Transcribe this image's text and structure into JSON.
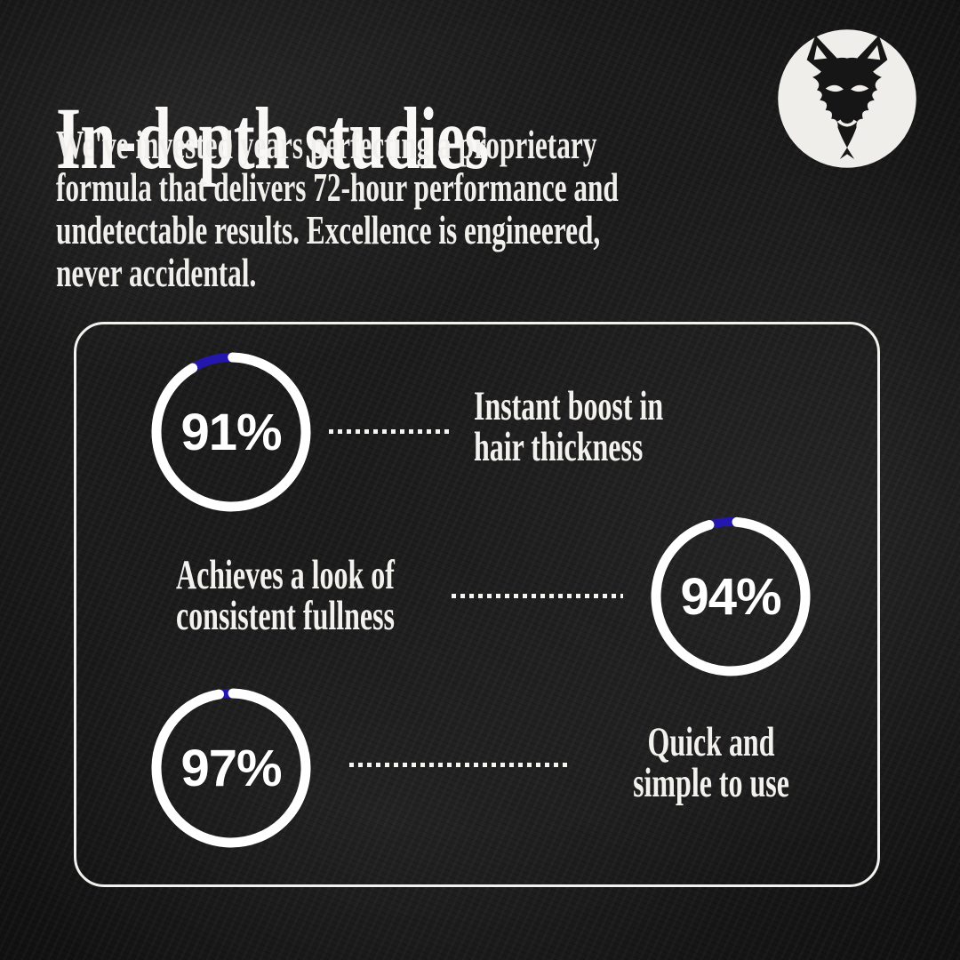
{
  "colors": {
    "background": "#1c1c1c",
    "text": "#f3f1ee",
    "accent_blue": "#2417ad",
    "ring_track": "#ffffff",
    "panel_border": "#f2f1ed",
    "logo_background": "#efeeea",
    "logo_ink": "#161616"
  },
  "header": {
    "title": "In-depth studies",
    "description_lines": [
      "We've invested years perfecting a proprietary",
      "formula that delivers 72-hour performance and",
      "undetectable results. Excellence is engineered,",
      "never accidental."
    ]
  },
  "chart_data": {
    "type": "radial-progress",
    "unit": "%",
    "ring": {
      "track_color": "#ffffff",
      "remainder_color": "#2417ad",
      "stroke_width": 11,
      "radius": 84
    },
    "items": [
      {
        "percent": 91,
        "display": "91%",
        "label_lines": [
          "Instant boost in",
          "hair thickness"
        ],
        "circle_side": "left",
        "gap_center_deg": -15
      },
      {
        "percent": 94,
        "display": "94%",
        "label_lines": [
          "Achieves a look of",
          "consistent fullness"
        ],
        "circle_side": "right",
        "gap_center_deg": -6
      },
      {
        "percent": 97,
        "display": "97%",
        "label_lines": [
          "Quick and",
          "simple to use"
        ],
        "circle_side": "left",
        "gap_center_deg": -4
      }
    ]
  }
}
